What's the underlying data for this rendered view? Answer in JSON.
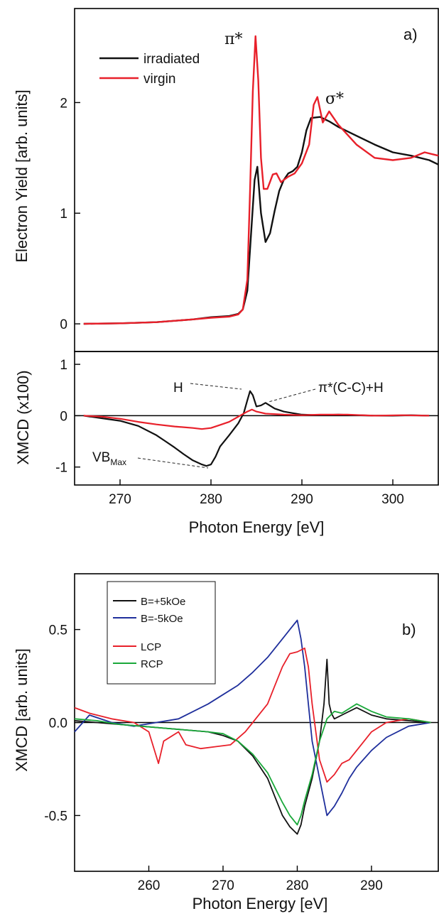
{
  "colors": {
    "black": "#111111",
    "red": "#e8202a",
    "blue": "#1f2f9c",
    "green": "#1aa83a"
  },
  "chart_data": [
    {
      "id": "a-top",
      "type": "line",
      "panel_label": "a)",
      "ylabel": "Electron Yield [arb. units]",
      "xlim": [
        265,
        305
      ],
      "ylim": [
        -0.25,
        2.85
      ],
      "yticks": [
        0,
        1,
        2
      ],
      "ytick_labels": [
        "0",
        "1",
        "2"
      ],
      "legend_placement": "top-left",
      "annotations": [
        "π*",
        "σ*"
      ],
      "series": [
        {
          "name": "irradiated",
          "color": "#111111",
          "x": [
            266,
            270,
            274,
            278,
            280,
            282,
            283,
            283.5,
            284,
            284.4,
            284.8,
            285.1,
            285.5,
            286,
            286.5,
            287,
            287.5,
            288,
            288.5,
            289,
            289.5,
            290,
            290.5,
            291,
            292,
            293,
            294,
            296,
            298,
            300,
            302,
            304,
            305
          ],
          "y": [
            0,
            0.005,
            0.015,
            0.04,
            0.06,
            0.07,
            0.09,
            0.13,
            0.3,
            0.8,
            1.3,
            1.42,
            1.0,
            0.74,
            0.82,
            1.02,
            1.2,
            1.3,
            1.36,
            1.38,
            1.42,
            1.55,
            1.75,
            1.86,
            1.87,
            1.83,
            1.78,
            1.7,
            1.62,
            1.55,
            1.52,
            1.48,
            1.44
          ]
        },
        {
          "name": "virgin",
          "color": "#e8202a",
          "x": [
            266,
            270,
            274,
            278,
            280,
            282,
            283,
            283.5,
            284,
            284.3,
            284.6,
            284.9,
            285.2,
            285.5,
            285.8,
            286.2,
            286.8,
            287.2,
            287.7,
            288,
            288.5,
            289.2,
            290,
            290.8,
            291.3,
            291.7,
            292.3,
            293,
            294,
            296,
            298,
            300,
            302,
            303.5,
            305
          ],
          "y": [
            0,
            0.005,
            0.015,
            0.04,
            0.055,
            0.065,
            0.085,
            0.13,
            0.4,
            1.2,
            2.1,
            2.6,
            2.2,
            1.5,
            1.22,
            1.22,
            1.35,
            1.36,
            1.28,
            1.3,
            1.33,
            1.36,
            1.45,
            1.62,
            1.98,
            2.05,
            1.82,
            1.92,
            1.8,
            1.62,
            1.5,
            1.48,
            1.5,
            1.55,
            1.52
          ]
        }
      ]
    },
    {
      "id": "a-bottom",
      "type": "line",
      "xlabel": "Photon Energy [eV]",
      "ylabel": "XMCD (x100)",
      "xlim": [
        265,
        305
      ],
      "ylim": [
        -1.35,
        1.25
      ],
      "xticks": [
        270,
        280,
        290,
        300
      ],
      "xtick_labels": [
        "270",
        "280",
        "290",
        "300"
      ],
      "yticks": [
        -1,
        0,
        1
      ],
      "ytick_labels": [
        "-1",
        "0",
        "1"
      ],
      "zero_line": true,
      "annotations": [
        {
          "text": "H"
        },
        {
          "text": "π*(C-C)+H"
        },
        {
          "text": "VB",
          "sub": "Max"
        }
      ],
      "series": [
        {
          "name": "irradiated",
          "color": "#111111",
          "x": [
            266,
            268,
            270,
            272,
            274,
            275,
            276,
            277,
            278,
            279,
            279.5,
            280,
            280.5,
            281,
            282,
            283,
            283.6,
            284,
            284.3,
            284.6,
            285,
            285.5,
            286,
            287,
            288,
            289,
            290,
            292,
            294,
            296,
            298,
            300,
            302,
            304
          ],
          "y": [
            0,
            -0.05,
            -0.1,
            -0.2,
            -0.38,
            -0.5,
            -0.62,
            -0.75,
            -0.87,
            -0.95,
            -0.98,
            -0.95,
            -0.8,
            -0.6,
            -0.38,
            -0.15,
            0.05,
            0.3,
            0.48,
            0.4,
            0.18,
            0.2,
            0.25,
            0.14,
            0.08,
            0.05,
            0.02,
            0.01,
            0.02,
            0.01,
            0,
            0,
            0.01,
            0
          ]
        },
        {
          "name": "virgin",
          "color": "#e8202a",
          "x": [
            266,
            268,
            270,
            272,
            274,
            276,
            278,
            279,
            280,
            281,
            282,
            283,
            284,
            284.5,
            285,
            286,
            288,
            290,
            292,
            295,
            298,
            301,
            304
          ],
          "y": [
            0,
            -0.02,
            -0.06,
            -0.12,
            -0.17,
            -0.21,
            -0.24,
            -0.26,
            -0.24,
            -0.18,
            -0.12,
            -0.02,
            0.08,
            0.12,
            0.08,
            0.04,
            0.02,
            0.01,
            0.02,
            0.02,
            0,
            0.01,
            0
          ]
        }
      ]
    },
    {
      "id": "b",
      "type": "line",
      "panel_label": "b)",
      "xlabel": "Photon Energy [eV]",
      "ylabel": "XMCD [arb. units]",
      "xlim": [
        250,
        299
      ],
      "ylim": [
        -0.8,
        0.8
      ],
      "xticks": [
        260,
        270,
        280,
        290
      ],
      "xtick_labels": [
        "260",
        "270",
        "280",
        "290"
      ],
      "yticks": [
        -0.5,
        0,
        0.5
      ],
      "ytick_labels": [
        "-0.5",
        "0.0",
        "0.5"
      ],
      "zero_line": true,
      "legend_placement": "top-left",
      "series": [
        {
          "name": "B=+5kOe",
          "color": "#111111",
          "x": [
            250,
            253,
            256,
            259,
            262,
            265,
            268,
            270,
            272,
            274,
            276,
            277,
            278,
            279,
            279.5,
            280,
            280.5,
            281,
            282,
            283,
            283.6,
            284,
            284.3,
            284.6,
            285,
            286,
            288,
            290,
            292,
            295,
            298
          ],
          "y": [
            0.01,
            0,
            -0.01,
            -0.02,
            -0.03,
            -0.04,
            -0.05,
            -0.07,
            -0.1,
            -0.18,
            -0.3,
            -0.4,
            -0.5,
            -0.56,
            -0.58,
            -0.6,
            -0.55,
            -0.45,
            -0.3,
            -0.1,
            0.1,
            0.34,
            0.1,
            0.05,
            0.02,
            0.04,
            0.08,
            0.04,
            0.02,
            0.01,
            0
          ]
        },
        {
          "name": "B=-5kOe",
          "color": "#1f2f9c",
          "x": [
            250,
            252,
            255,
            258,
            261,
            264,
            266,
            268,
            270,
            272,
            274,
            276,
            277,
            278,
            279,
            280,
            280.5,
            281,
            281.5,
            282,
            283,
            284,
            285,
            286,
            287,
            288,
            290,
            292,
            295,
            298
          ],
          "y": [
            -0.05,
            0.04,
            0.0,
            -0.02,
            0.0,
            0.02,
            0.06,
            0.1,
            0.15,
            0.2,
            0.27,
            0.35,
            0.4,
            0.45,
            0.5,
            0.55,
            0.45,
            0.3,
            0.1,
            -0.1,
            -0.3,
            -0.5,
            -0.45,
            -0.38,
            -0.3,
            -0.24,
            -0.15,
            -0.08,
            -0.02,
            0
          ]
        },
        {
          "name": "LCP",
          "color": "#e8202a",
          "x": [
            250,
            252,
            255,
            258,
            260,
            261.3,
            262,
            264,
            265,
            267,
            269,
            271,
            273,
            274,
            276,
            277,
            278,
            279,
            280,
            281,
            281.5,
            282,
            283,
            284,
            285,
            286,
            287,
            288,
            290,
            292,
            295,
            298
          ],
          "y": [
            0.08,
            0.05,
            0.02,
            0.0,
            -0.05,
            -0.22,
            -0.1,
            -0.05,
            -0.12,
            -0.14,
            -0.13,
            -0.12,
            -0.05,
            0.0,
            0.1,
            0.2,
            0.3,
            0.37,
            0.38,
            0.4,
            0.3,
            0.1,
            -0.2,
            -0.32,
            -0.28,
            -0.22,
            -0.2,
            -0.15,
            -0.05,
            0.0,
            0.02,
            0
          ]
        },
        {
          "name": "RCP",
          "color": "#1aa83a",
          "x": [
            250,
            253,
            256,
            259,
            262,
            265,
            268,
            270,
            272,
            274,
            276,
            277,
            278,
            279,
            280,
            280.5,
            281,
            282,
            283,
            284,
            285,
            286,
            288,
            290,
            292,
            295,
            298
          ],
          "y": [
            0.02,
            0.01,
            -0.01,
            -0.02,
            -0.03,
            -0.04,
            -0.05,
            -0.06,
            -0.1,
            -0.17,
            -0.27,
            -0.35,
            -0.43,
            -0.5,
            -0.55,
            -0.5,
            -0.42,
            -0.28,
            -0.1,
            0.02,
            0.06,
            0.05,
            0.1,
            0.06,
            0.03,
            0.02,
            0
          ]
        }
      ]
    }
  ]
}
